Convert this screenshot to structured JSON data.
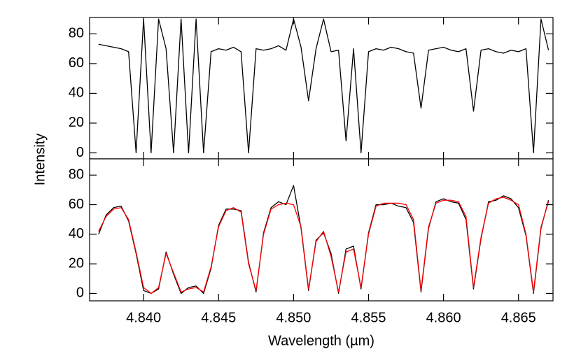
{
  "chart_data": [
    {
      "type": "line",
      "y_label": "Intensity",
      "x": [
        4.837,
        4.8375,
        4.838,
        4.8385,
        4.839,
        4.8395,
        4.84,
        4.8405,
        4.841,
        4.8415,
        4.842,
        4.8425,
        4.843,
        4.8435,
        4.844,
        4.8445,
        4.845,
        4.8455,
        4.846,
        4.8465,
        4.847,
        4.8475,
        4.848,
        4.8485,
        4.849,
        4.8495,
        4.85,
        4.8505,
        4.851,
        4.8515,
        4.852,
        4.8525,
        4.853,
        4.8535,
        4.854,
        4.8545,
        4.855,
        4.8555,
        4.856,
        4.8565,
        4.857,
        4.8575,
        4.858,
        4.8585,
        4.859,
        4.8595,
        4.86,
        4.8605,
        4.861,
        4.8615,
        4.862,
        4.8625,
        4.863,
        4.8635,
        4.864,
        4.8645,
        4.865,
        4.8655,
        4.866,
        4.8665,
        4.867
      ],
      "series": [
        {
          "color": "#000000",
          "values": [
            73,
            72,
            71,
            70,
            68,
            0,
            90,
            0,
            90,
            70,
            0,
            90,
            0,
            90,
            0,
            68,
            70,
            69,
            71,
            68,
            0,
            70,
            69,
            70,
            72,
            69,
            90,
            71,
            35,
            70,
            90,
            68,
            69,
            8,
            70,
            0,
            68,
            70,
            69,
            71,
            70,
            68,
            67,
            30,
            69,
            70,
            71,
            69,
            68,
            70,
            28,
            69,
            70,
            68,
            67,
            69,
            68,
            70,
            0,
            90,
            69
          ]
        }
      ],
      "xlim": [
        4.8364,
        4.8673
      ],
      "ylim": [
        -4,
        91
      ],
      "xticks": [
        4.84,
        4.845,
        4.85,
        4.855,
        4.86,
        4.865
      ],
      "yticks": [
        0,
        20,
        40,
        60,
        80
      ]
    },
    {
      "type": "line",
      "x_label": "Wavelength (µm)",
      "x": [
        4.837,
        4.8375,
        4.838,
        4.8385,
        4.839,
        4.8395,
        4.84,
        4.8405,
        4.841,
        4.8415,
        4.842,
        4.8425,
        4.843,
        4.8435,
        4.844,
        4.8445,
        4.845,
        4.8455,
        4.846,
        4.8465,
        4.847,
        4.8475,
        4.848,
        4.8485,
        4.849,
        4.8495,
        4.85,
        4.8505,
        4.851,
        4.8515,
        4.852,
        4.8525,
        4.853,
        4.8535,
        4.854,
        4.8545,
        4.855,
        4.8555,
        4.856,
        4.8565,
        4.857,
        4.8575,
        4.858,
        4.8585,
        4.859,
        4.8595,
        4.86,
        4.8605,
        4.861,
        4.8615,
        4.862,
        4.8625,
        4.863,
        4.8635,
        4.864,
        4.8645,
        4.865,
        4.8655,
        4.866,
        4.8665,
        4.867
      ],
      "series": [
        {
          "color": "#000000",
          "values": [
            40,
            53,
            58,
            59,
            49,
            27,
            2,
            0,
            3,
            28,
            13,
            0,
            4,
            5,
            0,
            17,
            46,
            57,
            57,
            56,
            21,
            1,
            41,
            58,
            62,
            60,
            73,
            44,
            2,
            36,
            41,
            27,
            0,
            30,
            32,
            3,
            41,
            60,
            60,
            61,
            59,
            58,
            48,
            1,
            44,
            62,
            64,
            62,
            61,
            50,
            3,
            37,
            62,
            63,
            66,
            64,
            58,
            39,
            0,
            44,
            63
          ]
        },
        {
          "color": "#ff0000",
          "values": [
            42,
            52,
            57,
            58,
            50,
            28,
            4,
            0,
            4,
            27,
            14,
            1,
            3,
            4,
            1,
            18,
            45,
            56,
            58,
            55,
            20,
            2,
            40,
            57,
            60,
            61,
            60,
            45,
            3,
            35,
            42,
            25,
            1,
            28,
            30,
            4,
            40,
            59,
            61,
            61,
            61,
            60,
            50,
            2,
            45,
            61,
            63,
            63,
            62,
            52,
            4,
            38,
            61,
            64,
            65,
            63,
            60,
            40,
            1,
            45,
            62
          ]
        }
      ],
      "xlim": [
        4.8364,
        4.8673
      ],
      "ylim": [
        -5,
        91
      ],
      "xticks": [
        {
          "value": 4.84,
          "label": "4.840"
        },
        {
          "value": 4.845,
          "label": "4.845"
        },
        {
          "value": 4.85,
          "label": "4.850"
        },
        {
          "value": 4.855,
          "label": "4.855"
        },
        {
          "value": 4.86,
          "label": "4.860"
        },
        {
          "value": 4.865,
          "label": "4.865"
        }
      ],
      "yticks": [
        0,
        20,
        40,
        60,
        80
      ]
    }
  ]
}
